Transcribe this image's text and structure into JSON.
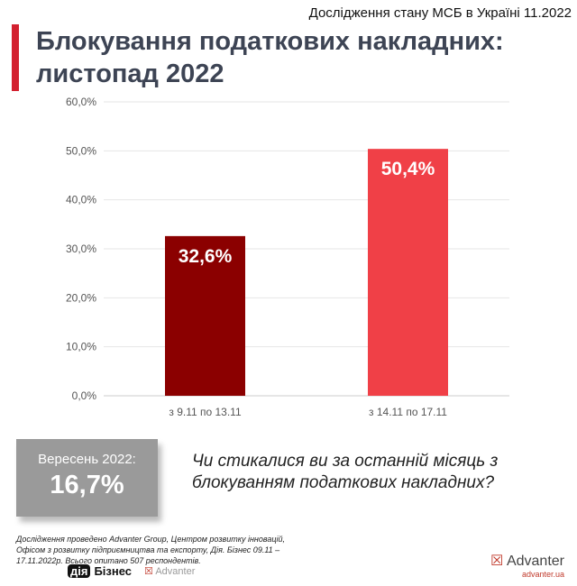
{
  "header": {
    "subtitle": "Дослідження стану МСБ в Україні 11.2022",
    "title_line1": "Блокування податкових накладних:",
    "title_line2": "листопад 2022"
  },
  "chart_data": {
    "type": "bar",
    "categories": [
      "з 9.11 по 13.11",
      "з 14.11 по 17.11"
    ],
    "values": [
      32.6,
      50.4
    ],
    "data_labels": [
      "32,6%",
      "50,4%"
    ],
    "ylim": [
      0,
      60
    ],
    "yticks": [
      "0,0%",
      "10,0%",
      "20,0%",
      "30,0%",
      "40,0%",
      "50,0%",
      "60,0%"
    ],
    "grid": true,
    "colors": [
      "#8b0000",
      "#f04047"
    ]
  },
  "september": {
    "label": "Вересень 2022:",
    "value": "16,7%"
  },
  "question": {
    "line1": "Чи стикалися ви за останній місяць з",
    "line2": "блокуванням податкових накладних?"
  },
  "footnote": "Дослідження проведено Advanter Group, Центром розвитку інновацій, Офісом з розвитку підприємництва та експорту, Дія. Бізнес 09.11 – 17.11.2022р. Всього опитано 507 респондентів.",
  "logos": {
    "dia": "Бізнес",
    "advanter": "Advanter",
    "advanter_url": "advanter.ua"
  }
}
